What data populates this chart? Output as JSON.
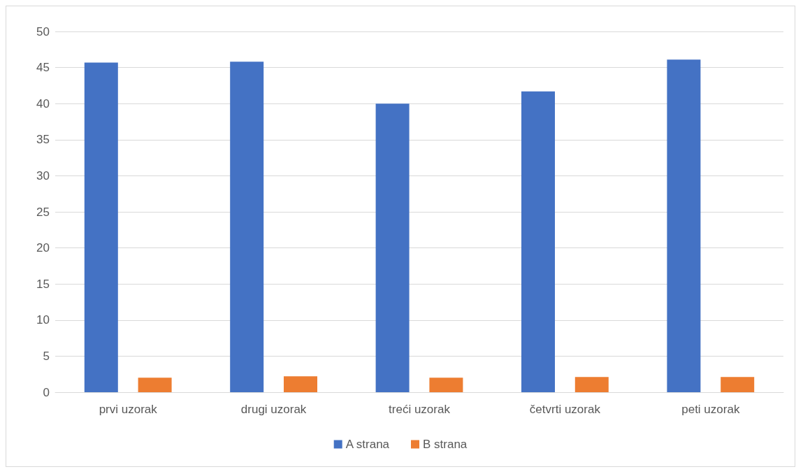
{
  "chart_data": {
    "type": "bar",
    "categories": [
      "prvi uzorak",
      "drugi uzorak",
      "treći uzorak",
      "četvrti uzorak",
      "peti uzorak"
    ],
    "series": [
      {
        "name": "A strana",
        "color": "#4472c4",
        "values": [
          45.7,
          45.8,
          40,
          41.7,
          46.1
        ]
      },
      {
        "name": "B strana",
        "color": "#ed7d31",
        "values": [
          2,
          2.2,
          2,
          2.1,
          2.1
        ]
      }
    ],
    "ylim": [
      0,
      50
    ],
    "yticks": [
      0,
      5,
      10,
      15,
      20,
      25,
      30,
      35,
      40,
      45,
      50
    ],
    "grid": "y",
    "legend": "bottom"
  }
}
